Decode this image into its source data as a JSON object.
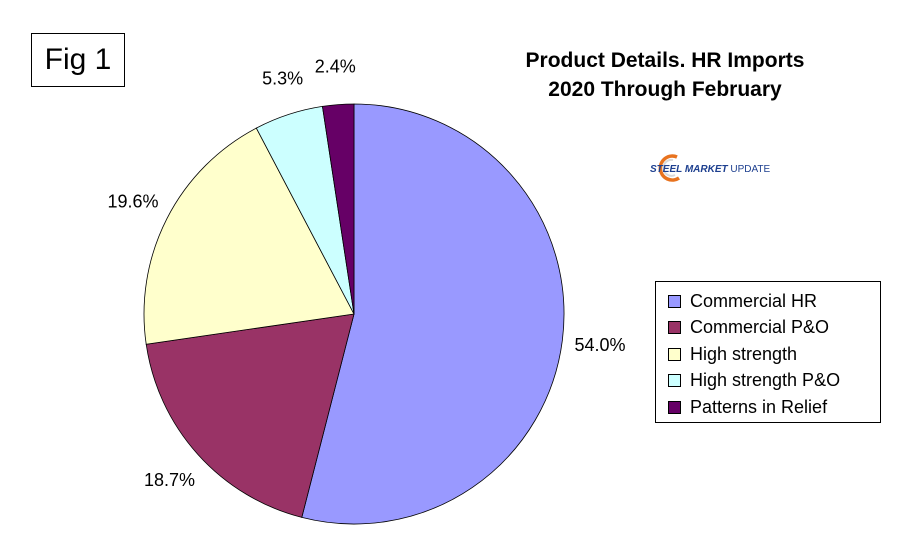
{
  "figure_label": "Fig 1",
  "title_lines": [
    "Product Details. HR Imports",
    "2020 Through February"
  ],
  "logo": {
    "text_primary": "STEEL MARKET",
    "text_secondary": " UPDATE",
    "color_primary": "#1d3f8f",
    "color_accent": "#e8731f"
  },
  "chart_data": {
    "type": "pie",
    "title": "Product Details. HR Imports 2020 Through February",
    "slices": [
      {
        "label": "Commercial HR",
        "value": 54.0,
        "display": "54.0%",
        "color": "#9999ff"
      },
      {
        "label": "Commercial P&O",
        "value": 18.7,
        "display": "18.7%",
        "color": "#993366"
      },
      {
        "label": "High strength",
        "value": 19.6,
        "display": "19.6%",
        "color": "#ffffcc"
      },
      {
        "label": "High strength P&O",
        "value": 5.3,
        "display": "5.3%",
        "color": "#ccffff"
      },
      {
        "label": "Patterns in Relief",
        "value": 2.4,
        "display": "2.4%",
        "color": "#660066"
      }
    ],
    "legend_position": "right",
    "start_angle_deg": 0,
    "direction": "clockwise"
  }
}
